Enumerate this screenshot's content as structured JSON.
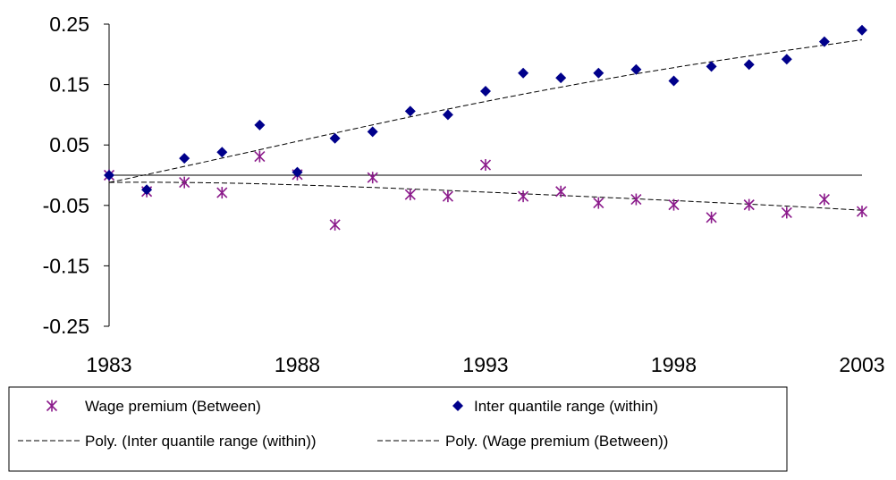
{
  "chart_data": {
    "type": "scatter",
    "x": [
      1983,
      1984,
      1985,
      1986,
      1987,
      1988,
      1989,
      1990,
      1991,
      1992,
      1993,
      1994,
      1995,
      1996,
      1997,
      1998,
      1999,
      2000,
      2001,
      2002,
      2003
    ],
    "series": [
      {
        "name": "Wage premium (Between)",
        "marker": "asterisk",
        "color": "#8B1A8B",
        "values": [
          0.0,
          -0.027,
          -0.012,
          -0.029,
          0.031,
          0.001,
          -0.082,
          -0.004,
          -0.032,
          -0.035,
          0.017,
          -0.035,
          -0.027,
          -0.046,
          -0.04,
          -0.049,
          -0.07,
          -0.049,
          -0.062,
          -0.04,
          -0.06
        ]
      },
      {
        "name": "Inter quantile range (within)",
        "marker": "diamond",
        "color": "#00008B",
        "values": [
          0.0,
          -0.024,
          0.028,
          0.038,
          0.083,
          0.005,
          0.061,
          0.072,
          0.106,
          0.1,
          0.139,
          0.169,
          0.161,
          0.169,
          0.175,
          0.156,
          0.18,
          0.183,
          0.192,
          0.221,
          0.24
        ]
      }
    ],
    "trendlines": [
      {
        "name": "Poly. (Inter quantile range (within))",
        "of_series": 1,
        "style": "dashed",
        "color": "#000000",
        "x": [
          1983,
          1988,
          1993,
          1998,
          2003
        ],
        "values": [
          -0.012,
          0.056,
          0.122,
          0.178,
          0.224
        ]
      },
      {
        "name": "Poly. (Wage premium (Between))",
        "of_series": 0,
        "style": "dashed",
        "color": "#000000",
        "x": [
          1983,
          1988,
          1993,
          1998,
          2003
        ],
        "values": [
          -0.012,
          -0.016,
          -0.028,
          -0.042,
          -0.058
        ]
      }
    ],
    "xlim": [
      1983,
      2003
    ],
    "ylim": [
      -0.25,
      0.25
    ],
    "xticks": [
      "1983",
      "1988",
      "1993",
      "1998",
      "2003"
    ],
    "yticks": [
      "0.25",
      "0.15",
      "0.05",
      "-0.05",
      "-0.15",
      "-0.25"
    ],
    "ytick_values": [
      0.25,
      0.15,
      0.05,
      -0.05,
      -0.15,
      -0.25
    ],
    "xtick_values": [
      1983,
      1988,
      1993,
      1998,
      2003
    ],
    "zero_line": true,
    "grid": false,
    "legend_position": "bottom",
    "title": "",
    "xlabel": "",
    "ylabel": ""
  }
}
